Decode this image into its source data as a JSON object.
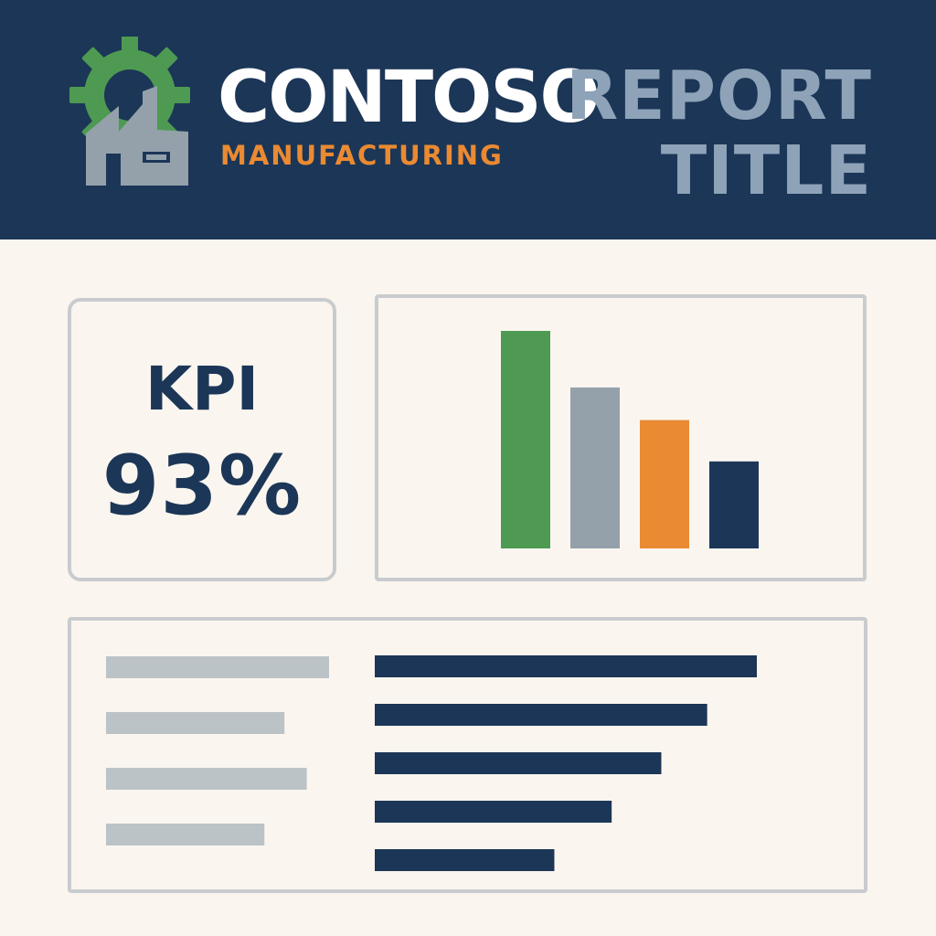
{
  "header": {
    "brand_name": "CONTOSO",
    "brand_subtitle": "MANUFACTURING",
    "report_title": "REPORT TITLE",
    "logo_icon": "gear-factory-icon"
  },
  "kpi": {
    "label": "KPI",
    "value": "93%"
  },
  "colors": {
    "header_bg": "#1c3657",
    "page_bg": "#faf5ee",
    "brand_green": "#4e9a52",
    "brand_orange": "#ea8a32",
    "slate_gray": "#94a1ab",
    "navy": "#1c3657",
    "title_gray": "#8ea3b8",
    "placeholder_gray": "#bcc3c7"
  },
  "chart_data": {
    "type": "bar",
    "values": [
      100,
      74,
      59,
      40
    ],
    "colors": [
      "#4e9a52",
      "#94a1ab",
      "#ea8a32",
      "#1c3657"
    ],
    "ylim": [
      0,
      100
    ]
  },
  "bar_list": {
    "label_placeholder_lengths": [
      100,
      80,
      90,
      71
    ],
    "bar_values": [
      100,
      87,
      75,
      62,
      47
    ]
  }
}
